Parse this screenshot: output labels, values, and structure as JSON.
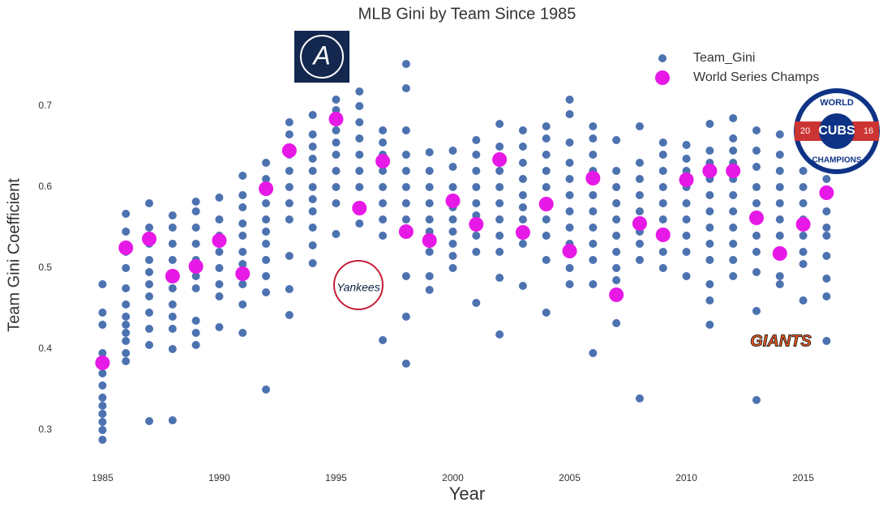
{
  "chart_data": {
    "type": "scatter",
    "title": "MLB Gini by Team Since 1985",
    "xlabel": "Year",
    "ylabel": "Team Gini Coefficient",
    "xlim": [
      1982,
      2018
    ],
    "ylim": [
      0.26,
      0.76
    ],
    "xticks": [
      1985,
      1990,
      1995,
      2000,
      2005,
      2010,
      2015
    ],
    "yticks": [
      0.3,
      0.4,
      0.5,
      0.6,
      0.7
    ],
    "legend": "upper right",
    "logos": [
      "A",
      "Yankees",
      "WORLD",
      "CUBS",
      "20",
      "16",
      "CHAMPIONS",
      "GIANTS"
    ],
    "series": [
      {
        "name": "Team_Gini",
        "color": "#4c72b0",
        "x": [
          1985,
          1986,
          1987,
          1988,
          1989,
          1990,
          1991,
          1992,
          1993,
          1994,
          1995,
          1996,
          1997,
          1998,
          1999,
          2000,
          2001,
          2002,
          2003,
          2004,
          2005,
          2006,
          2007,
          2008,
          2009,
          2010,
          2011,
          2012,
          2013,
          2014,
          2015,
          2016
        ],
        "values": [
          [
            0.48,
            0.445,
            0.43,
            0.395,
            0.38,
            0.37,
            0.355,
            0.34,
            0.33,
            0.32,
            0.31,
            0.3,
            0.288
          ],
          [
            0.567,
            0.545,
            0.52,
            0.5,
            0.475,
            0.455,
            0.44,
            0.43,
            0.42,
            0.41,
            0.395,
            0.385
          ],
          [
            0.58,
            0.55,
            0.53,
            0.51,
            0.495,
            0.48,
            0.465,
            0.445,
            0.425,
            0.405,
            0.311
          ],
          [
            0.565,
            0.55,
            0.53,
            0.51,
            0.475,
            0.455,
            0.44,
            0.425,
            0.4,
            0.312
          ],
          [
            0.582,
            0.57,
            0.55,
            0.53,
            0.51,
            0.49,
            0.475,
            0.435,
            0.42,
            0.405
          ],
          [
            0.587,
            0.56,
            0.54,
            0.52,
            0.5,
            0.48,
            0.465,
            0.427
          ],
          [
            0.614,
            0.59,
            0.575,
            0.555,
            0.54,
            0.52,
            0.505,
            0.48,
            0.455,
            0.42
          ],
          [
            0.63,
            0.61,
            0.58,
            0.56,
            0.545,
            0.53,
            0.51,
            0.49,
            0.47,
            0.35
          ],
          [
            0.68,
            0.665,
            0.64,
            0.62,
            0.6,
            0.58,
            0.56,
            0.515,
            0.474,
            0.442
          ],
          [
            0.689,
            0.665,
            0.65,
            0.635,
            0.62,
            0.6,
            0.585,
            0.57,
            0.55,
            0.528,
            0.506
          ],
          [
            0.708,
            0.695,
            0.67,
            0.655,
            0.64,
            0.62,
            0.6,
            0.58,
            0.542
          ],
          [
            0.718,
            0.7,
            0.68,
            0.66,
            0.64,
            0.62,
            0.6,
            0.555
          ],
          [
            0.67,
            0.655,
            0.64,
            0.62,
            0.6,
            0.58,
            0.56,
            0.54,
            0.411
          ],
          [
            0.752,
            0.722,
            0.67,
            0.64,
            0.62,
            0.6,
            0.58,
            0.56,
            0.49,
            0.44,
            0.382
          ],
          [
            0.643,
            0.62,
            0.6,
            0.58,
            0.56,
            0.545,
            0.52,
            0.49,
            0.473
          ],
          [
            0.645,
            0.625,
            0.6,
            0.575,
            0.56,
            0.545,
            0.53,
            0.515,
            0.5
          ],
          [
            0.658,
            0.64,
            0.62,
            0.6,
            0.58,
            0.565,
            0.54,
            0.52,
            0.457
          ],
          [
            0.678,
            0.65,
            0.62,
            0.6,
            0.58,
            0.56,
            0.54,
            0.52,
            0.488,
            0.418
          ],
          [
            0.67,
            0.65,
            0.63,
            0.61,
            0.59,
            0.575,
            0.56,
            0.53,
            0.478
          ],
          [
            0.675,
            0.66,
            0.64,
            0.62,
            0.6,
            0.58,
            0.56,
            0.54,
            0.51,
            0.445
          ],
          [
            0.708,
            0.69,
            0.655,
            0.63,
            0.61,
            0.59,
            0.57,
            0.55,
            0.53,
            0.5,
            0.48
          ],
          [
            0.675,
            0.66,
            0.64,
            0.62,
            0.59,
            0.57,
            0.55,
            0.53,
            0.51,
            0.48,
            0.395
          ],
          [
            0.658,
            0.62,
            0.6,
            0.58,
            0.56,
            0.54,
            0.52,
            0.5,
            0.485,
            0.432
          ],
          [
            0.675,
            0.63,
            0.61,
            0.59,
            0.57,
            0.545,
            0.53,
            0.51,
            0.339
          ],
          [
            0.655,
            0.64,
            0.62,
            0.6,
            0.58,
            0.56,
            0.52,
            0.5
          ],
          [
            0.652,
            0.635,
            0.62,
            0.6,
            0.58,
            0.56,
            0.54,
            0.52,
            0.49
          ],
          [
            0.678,
            0.645,
            0.63,
            0.61,
            0.59,
            0.57,
            0.55,
            0.53,
            0.51,
            0.48,
            0.46,
            0.43
          ],
          [
            0.685,
            0.66,
            0.645,
            0.63,
            0.61,
            0.59,
            0.57,
            0.55,
            0.53,
            0.51,
            0.49
          ],
          [
            0.67,
            0.645,
            0.625,
            0.6,
            0.58,
            0.56,
            0.54,
            0.52,
            0.495,
            0.447,
            0.337
          ],
          [
            0.665,
            0.64,
            0.62,
            0.6,
            0.58,
            0.56,
            0.54,
            0.52,
            0.49,
            0.48
          ],
          [
            0.62,
            0.6,
            0.58,
            0.56,
            0.54,
            0.52,
            0.505,
            0.46
          ],
          [
            0.61,
            0.59,
            0.57,
            0.55,
            0.54,
            0.515,
            0.487,
            0.465,
            0.41
          ]
        ]
      },
      {
        "name": "World Series Champs",
        "color": "#e619e6",
        "x": [
          1985,
          1986,
          1987,
          1988,
          1989,
          1990,
          1991,
          1992,
          1993,
          1995,
          1996,
          1997,
          1998,
          1999,
          2000,
          2001,
          2002,
          2003,
          2004,
          2005,
          2006,
          2007,
          2008,
          2009,
          2010,
          2011,
          2012,
          2013,
          2014,
          2015,
          2016
        ],
        "values": [
          0.383,
          0.525,
          0.536,
          0.49,
          0.502,
          0.534,
          0.493,
          0.598,
          0.645,
          0.684,
          0.574,
          0.632,
          0.545,
          0.534,
          0.583,
          0.554,
          0.634,
          0.544,
          0.579,
          0.521,
          0.611,
          0.467,
          0.555,
          0.541,
          0.609,
          0.62,
          0.62,
          0.562,
          0.518,
          0.554,
          0.593
        ]
      }
    ]
  }
}
